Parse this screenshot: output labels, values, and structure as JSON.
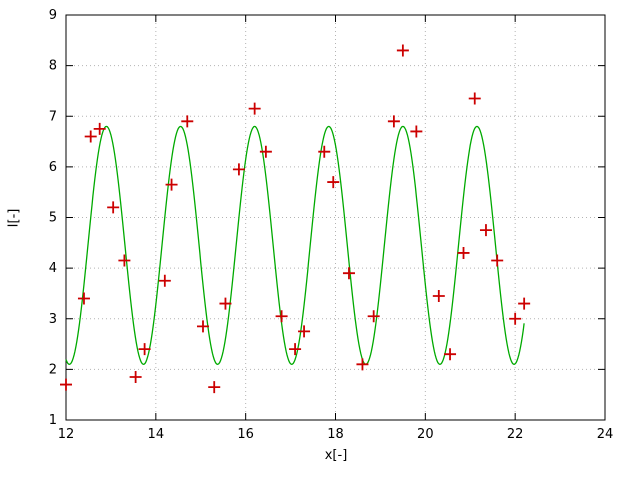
{
  "window": {
    "background": "#ffffff"
  },
  "chart_data": {
    "type": "scatter+line",
    "title": "",
    "xlabel": "x[-]",
    "ylabel": "I[-]",
    "xlim": [
      12,
      24
    ],
    "ylim": [
      1,
      9
    ],
    "xticks": [
      12,
      14,
      16,
      18,
      20,
      22,
      24
    ],
    "yticks": [
      1,
      2,
      3,
      4,
      5,
      6,
      7,
      8,
      9
    ],
    "grid": true,
    "grid_style": "dotted",
    "legend": "none",
    "colors": {
      "scatter": "#cc0000",
      "line": "#00aa00",
      "grid": "#b4b4b4",
      "axis": "#000000",
      "background": "#ffffff"
    },
    "series": [
      {
        "name": "data-points",
        "type": "scatter",
        "marker": "plus",
        "color": "#cc0000",
        "points": [
          [
            12.0,
            1.7
          ],
          [
            12.4,
            3.4
          ],
          [
            12.55,
            6.6
          ],
          [
            12.75,
            6.75
          ],
          [
            13.05,
            5.2
          ],
          [
            13.3,
            4.15
          ],
          [
            13.55,
            1.85
          ],
          [
            13.75,
            2.4
          ],
          [
            14.2,
            3.75
          ],
          [
            14.35,
            5.65
          ],
          [
            14.7,
            6.9
          ],
          [
            15.05,
            2.85
          ],
          [
            15.3,
            1.65
          ],
          [
            15.55,
            3.3
          ],
          [
            15.85,
            5.95
          ],
          [
            16.2,
            7.15
          ],
          [
            16.45,
            6.3
          ],
          [
            16.8,
            3.05
          ],
          [
            17.1,
            2.4
          ],
          [
            17.3,
            2.75
          ],
          [
            17.75,
            6.3
          ],
          [
            17.95,
            5.7
          ],
          [
            18.3,
            3.9
          ],
          [
            18.6,
            2.1
          ],
          [
            18.85,
            3.05
          ],
          [
            19.3,
            6.9
          ],
          [
            19.5,
            8.3
          ],
          [
            19.8,
            6.7
          ],
          [
            20.3,
            3.45
          ],
          [
            20.55,
            2.3
          ],
          [
            20.85,
            4.3
          ],
          [
            21.1,
            7.35
          ],
          [
            21.35,
            4.75
          ],
          [
            21.6,
            4.15
          ],
          [
            22.0,
            3.0
          ],
          [
            22.2,
            3.3
          ]
        ]
      },
      {
        "name": "fit-curve",
        "type": "line",
        "color": "#00aa00",
        "model": {
          "form": "offset + amplitude*cos(2*pi*(x-peak)/period)",
          "offset": 4.45,
          "amplitude": 2.35,
          "period": 1.65,
          "peak": 12.9,
          "domain": [
            12.0,
            22.2
          ]
        }
      }
    ]
  }
}
